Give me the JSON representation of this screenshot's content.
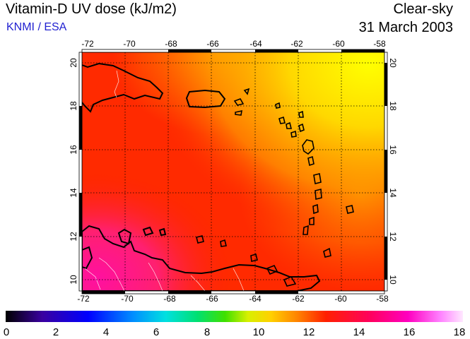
{
  "header": {
    "title": "Vitamin-D UV dose (kJ/m2)",
    "subtitle": "KNMI / ESA",
    "condition": "Clear-sky",
    "date": "31 March 2003"
  },
  "map": {
    "lon_range": [
      -72,
      -58
    ],
    "lat_range": [
      9.5,
      20.5
    ],
    "lon_ticks": [
      -72,
      -70,
      -68,
      -66,
      -64,
      -62,
      -60,
      -58
    ],
    "lat_ticks": [
      10,
      12,
      14,
      16,
      18,
      20
    ],
    "grid": "dotted"
  },
  "colorbar": {
    "ticks": [
      "0",
      "2",
      "4",
      "6",
      "8",
      "10",
      "12",
      "14",
      "16",
      "18"
    ],
    "colors": [
      "#000000",
      "#3a00a0",
      "#0000ff",
      "#0090ff",
      "#00e0e0",
      "#00e070",
      "#40e000",
      "#d8f000",
      "#ffd000",
      "#ff8000",
      "#ff2000",
      "#ff0060",
      "#ff00c0",
      "#ff80ff",
      "#ffe8ff"
    ]
  }
}
